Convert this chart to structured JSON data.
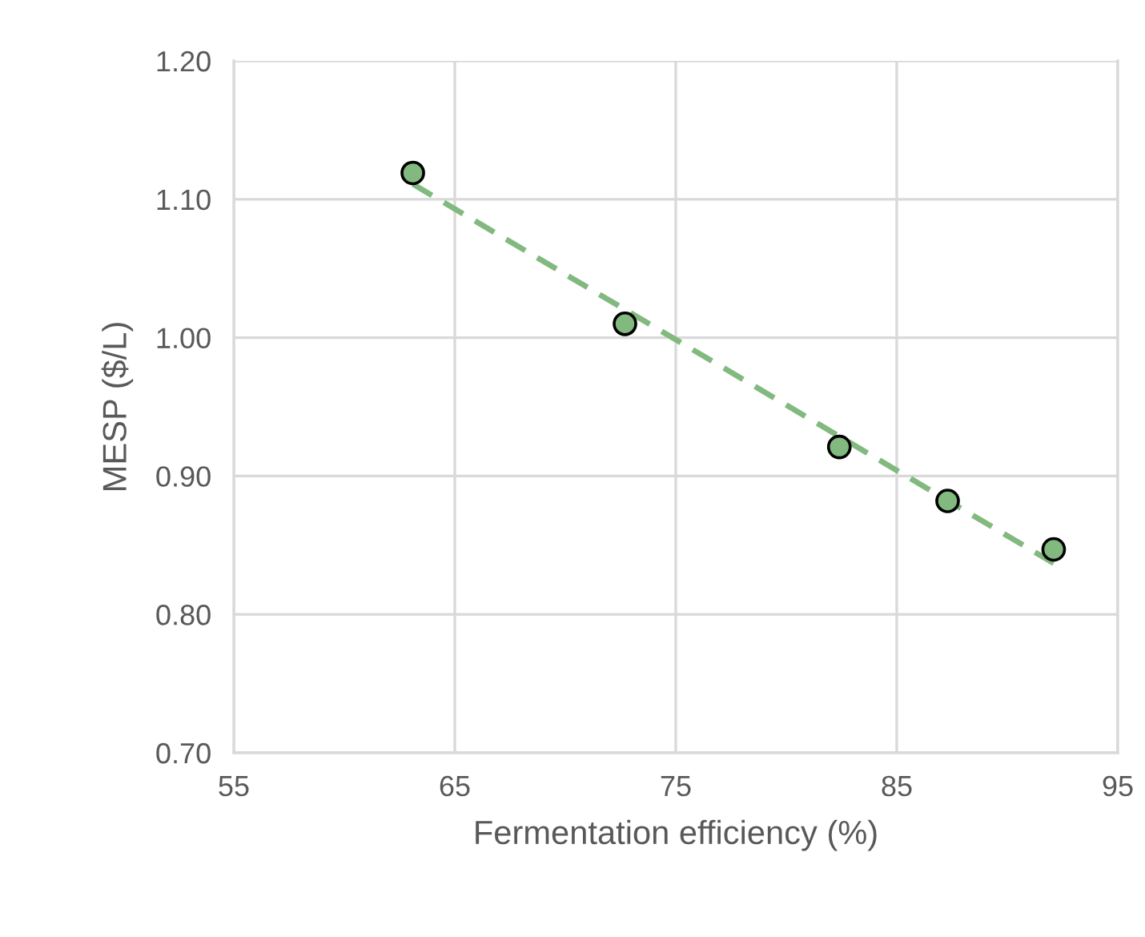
{
  "chart_data": {
    "type": "scatter",
    "xlabel": "Fermentation efficiency (%)",
    "ylabel": "MESP ($/L)",
    "series": [
      {
        "color": "#82b97f",
        "x": [
          63.1,
          72.7,
          82.4,
          87.3,
          92.1
        ],
        "values": [
          1.119,
          1.01,
          0.921,
          0.882,
          0.847
        ],
        "marker": "circle"
      },
      {
        "type": "line",
        "color": "#82b97f",
        "x": [
          63.1,
          92.1
        ],
        "values": [
          1.111,
          0.837
        ],
        "line_style": "dashed"
      }
    ],
    "xlim": [
      55,
      95
    ],
    "xticks": [
      55,
      65,
      75,
      85,
      95
    ],
    "ylim": [
      0.7,
      1.2
    ],
    "yticks": [
      {
        "value": 0.7,
        "label": "0.70"
      },
      {
        "value": 0.8,
        "label": "0.80"
      },
      {
        "value": 0.9,
        "label": "0.90"
      },
      {
        "value": 1.0,
        "label": "1.00"
      },
      {
        "value": 1.1,
        "label": "1.10"
      },
      {
        "value": 1.2,
        "label": "1.20"
      }
    ],
    "grid": true,
    "legend": false
  }
}
